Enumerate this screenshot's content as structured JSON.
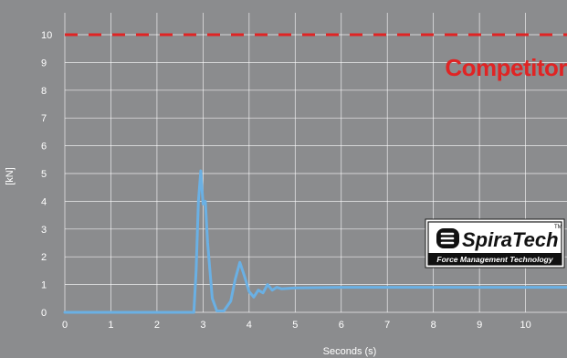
{
  "chart_data": {
    "type": "line",
    "title": "",
    "xlabel": "Seconds (s)",
    "ylabel": "[kN]",
    "xlim": [
      0,
      10.9
    ],
    "ylim": [
      0,
      10
    ],
    "x_ticks": [
      0,
      1,
      2,
      3,
      4,
      5,
      6,
      7,
      8,
      9,
      10
    ],
    "y_ticks": [
      0,
      1,
      2,
      3,
      4,
      5,
      6,
      7,
      8,
      9,
      10
    ],
    "grid": true,
    "series": [
      {
        "x": [
          0,
          2.5,
          2.8,
          2.85,
          2.9,
          2.95,
          3.0,
          3.05,
          3.1,
          3.2,
          3.3,
          3.45,
          3.6,
          3.7,
          3.8,
          3.9,
          4.0,
          4.1,
          4.2,
          4.3,
          4.4,
          4.5,
          4.6,
          4.7,
          5.0,
          6.0,
          7.0,
          8.0,
          9.0,
          10.0,
          10.9
        ],
        "y": [
          0,
          0,
          0,
          1.5,
          4.0,
          5.1,
          3.9,
          4.0,
          2.5,
          0.5,
          0.05,
          0.05,
          0.4,
          1.2,
          1.8,
          1.3,
          0.75,
          0.55,
          0.8,
          0.7,
          1.0,
          0.8,
          0.9,
          0.85,
          0.88,
          0.9,
          0.9,
          0.9,
          0.9,
          0.9,
          0.9
        ],
        "color": "#6ab0e4"
      },
      {
        "name": "Competitor",
        "y_constant": 10,
        "style": "dashed",
        "color": "#e02424"
      }
    ]
  },
  "logo": {
    "brand": "SpiraTech",
    "tagline": "Force Management Technology",
    "trademark": "TM"
  },
  "colors": {
    "background": "#8b8c8e",
    "grid": "#ffffff",
    "series_main": "#6ab0e4",
    "competitor": "#e02424"
  }
}
